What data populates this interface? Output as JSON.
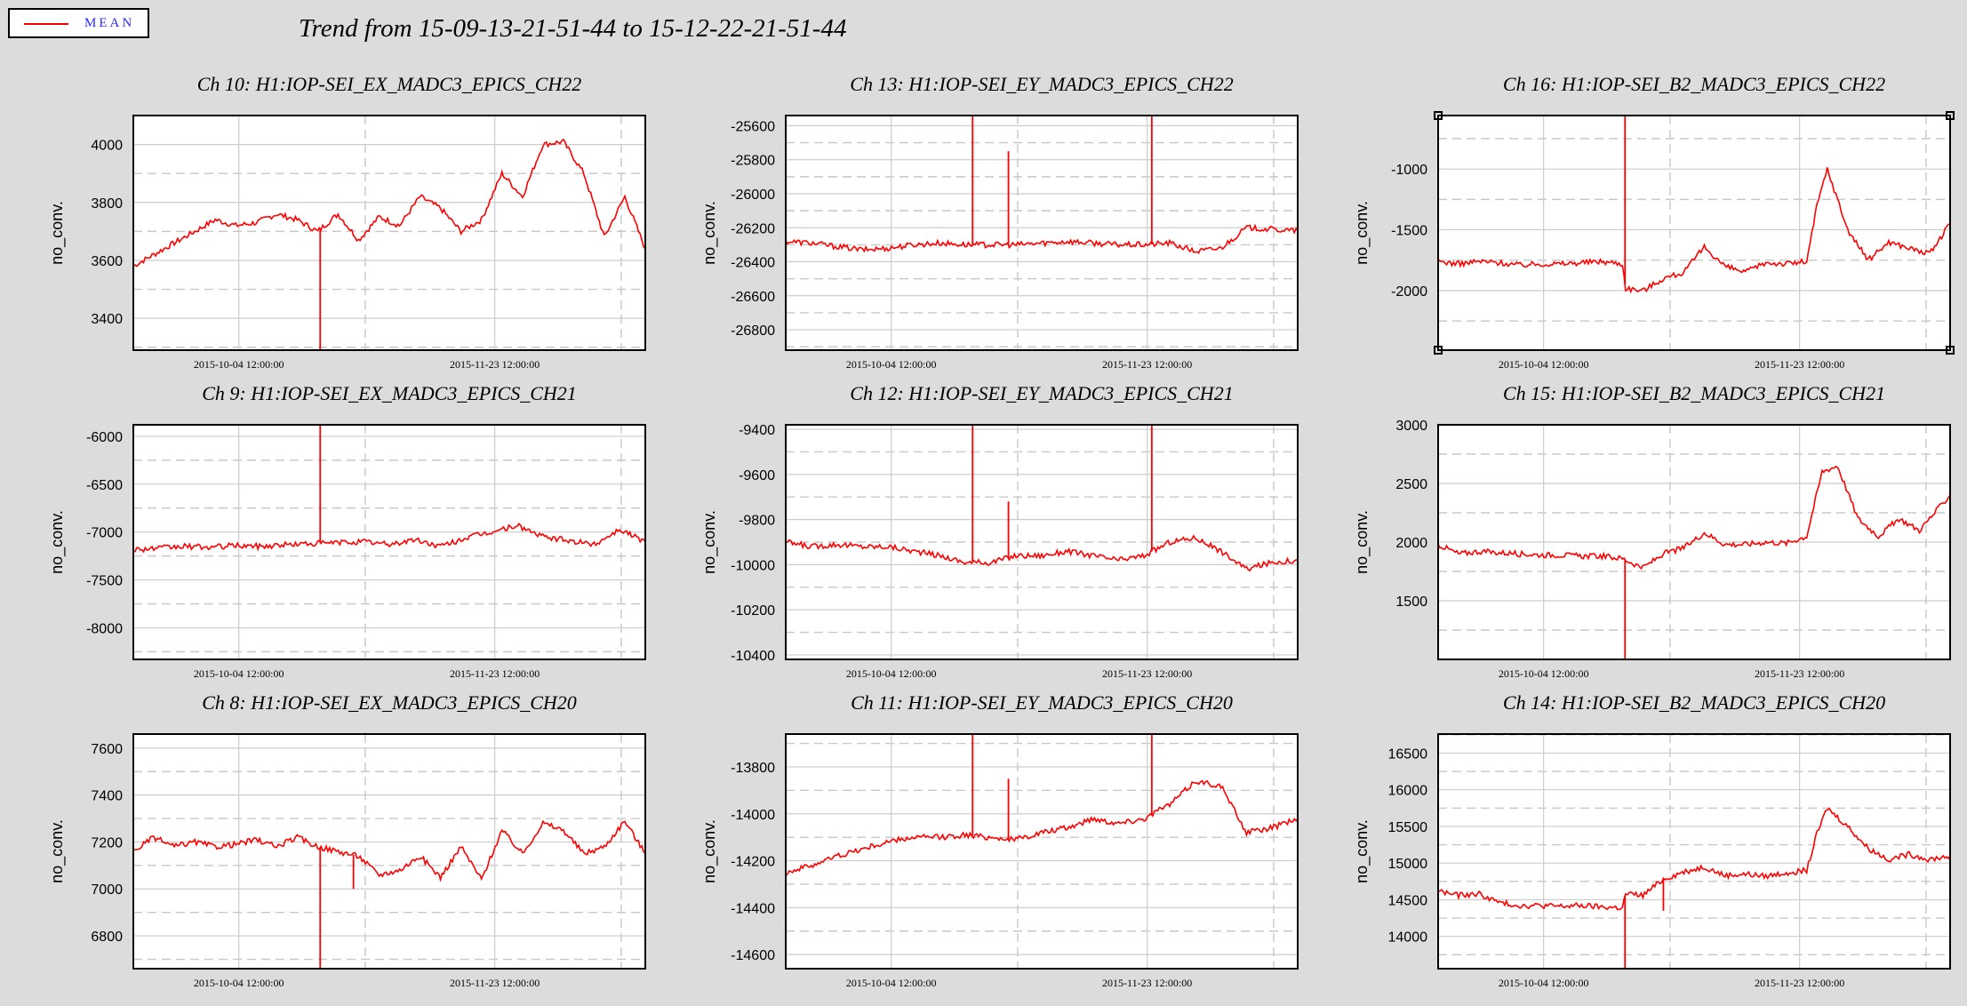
{
  "legend": {
    "label": "MEAN",
    "color": "#ff0000"
  },
  "title": "Trend from 15-09-13-21-51-44 to 15-12-22-21-51-44",
  "chart_data": [
    {
      "type": "line",
      "title": "Ch 10: H1:IOP-SEI_EX_MADC3_EPICS_CH22",
      "ylabel": "no_conv.",
      "ylim": [
        3290,
        4100
      ],
      "yticks": [
        3400,
        3600,
        3800,
        4000
      ],
      "xticks": [
        "2015-10-04 12:00:00",
        "2015-11-23 12:00:00"
      ],
      "series": [
        {
          "color": "#ff0000",
          "x": [
            0,
            4,
            8,
            12,
            16,
            20,
            24,
            28,
            32,
            36,
            40,
            44,
            48,
            52,
            56,
            60,
            64,
            68,
            72,
            76,
            80,
            84,
            88,
            92,
            96,
            100
          ],
          "y": [
            3580,
            3620,
            3660,
            3700,
            3740,
            3720,
            3730,
            3760,
            3740,
            3700,
            3760,
            3670,
            3750,
            3720,
            3820,
            3780,
            3700,
            3740,
            3900,
            3820,
            4000,
            4010,
            3900,
            3680,
            3820,
            3640
          ]
        }
      ],
      "spikes": [
        {
          "x": 36.5,
          "to": 3290
        },
        {
          "x": 100,
          "to": 3290
        }
      ]
    },
    {
      "type": "line",
      "title": "Ch 13: H1:IOP-SEI_EY_MADC3_EPICS_CH22",
      "ylabel": "no_conv.",
      "ylim": [
        -26920,
        -25540
      ],
      "yticks": [
        -25600,
        -25800,
        -26000,
        -26200,
        -26400,
        -26600,
        -26800
      ],
      "xticks": [
        "2015-10-04 12:00:00",
        "2015-11-23 12:00:00"
      ],
      "series": [
        {
          "color": "#ff0000",
          "x": [
            0,
            5,
            10,
            15,
            20,
            25,
            30,
            35,
            40,
            45,
            50,
            55,
            60,
            65,
            70,
            75,
            80,
            85,
            90,
            95,
            100
          ],
          "y": [
            -26280,
            -26290,
            -26310,
            -26330,
            -26320,
            -26300,
            -26290,
            -26300,
            -26300,
            -26300,
            -26290,
            -26280,
            -26290,
            -26300,
            -26300,
            -26290,
            -26340,
            -26320,
            -26200,
            -26210,
            -26220
          ]
        }
      ],
      "spikes": [
        {
          "x": 36.5,
          "to": -25540
        },
        {
          "x": 43.5,
          "to": -25750
        },
        {
          "x": 71.5,
          "to": -25540
        },
        {
          "x": 100,
          "to": -25540
        }
      ]
    },
    {
      "type": "line",
      "title": "Ch 16: H1:IOP-SEI_B2_MADC3_EPICS_CH22",
      "ylabel": "no_conv.",
      "ylim": [
        -2490,
        -560
      ],
      "yticks": [
        -1000,
        -1500,
        -2000
      ],
      "xticks": [
        "2015-10-04 12:00:00",
        "2015-11-23 12:00:00"
      ],
      "series": [
        {
          "color": "#ff0000",
          "x": [
            0,
            4,
            8,
            12,
            16,
            20,
            24,
            28,
            32,
            36,
            36.6,
            40,
            44,
            48,
            52,
            56,
            60,
            64,
            68,
            72,
            74,
            76,
            80,
            84,
            88,
            92,
            96,
            100
          ],
          "y": [
            -1760,
            -1780,
            -1760,
            -1770,
            -1790,
            -1780,
            -1780,
            -1770,
            -1760,
            -1780,
            -1980,
            -2000,
            -1900,
            -1850,
            -1640,
            -1800,
            -1850,
            -1770,
            -1780,
            -1760,
            -1300,
            -1000,
            -1500,
            -1750,
            -1600,
            -1650,
            -1700,
            -1450
          ]
        }
      ],
      "spikes": [
        {
          "x": 36.5,
          "to": -560
        },
        {
          "x": 100,
          "to": -560
        }
      ],
      "selected": true
    },
    {
      "type": "line",
      "title": "Ch 9: H1:IOP-SEI_EX_MADC3_EPICS_CH21",
      "ylabel": "no_conv.",
      "ylim": [
        -8330,
        -5880
      ],
      "yticks": [
        -6000,
        -6500,
        -7000,
        -7500,
        -8000
      ],
      "xticks": [
        "2015-10-04 12:00:00",
        "2015-11-23 12:00:00"
      ],
      "series": [
        {
          "color": "#ff0000",
          "x": [
            0,
            5,
            10,
            15,
            20,
            25,
            30,
            35,
            40,
            45,
            50,
            55,
            60,
            65,
            70,
            75,
            80,
            85,
            90,
            95,
            100
          ],
          "y": [
            -7180,
            -7170,
            -7150,
            -7160,
            -7140,
            -7150,
            -7130,
            -7120,
            -7110,
            -7100,
            -7130,
            -7080,
            -7150,
            -7060,
            -7000,
            -6930,
            -7050,
            -7090,
            -7130,
            -6970,
            -7100
          ]
        }
      ],
      "spikes": [
        {
          "x": 36.5,
          "to": -5880
        },
        {
          "x": 100,
          "to": -5880
        }
      ]
    },
    {
      "type": "line",
      "title": "Ch 12: H1:IOP-SEI_EY_MADC3_EPICS_CH21",
      "ylabel": "no_conv.",
      "ylim": [
        -10420,
        -9380
      ],
      "yticks": [
        -9400,
        -9600,
        -9800,
        -10000,
        -10200,
        -10400
      ],
      "xticks": [
        "2015-10-04 12:00:00",
        "2015-11-23 12:00:00"
      ],
      "series": [
        {
          "color": "#ff0000",
          "x": [
            0,
            5,
            10,
            15,
            20,
            25,
            30,
            35,
            40,
            45,
            50,
            55,
            60,
            65,
            70,
            75,
            80,
            85,
            90,
            95,
            100
          ],
          "y": [
            -9900,
            -9920,
            -9910,
            -9920,
            -9920,
            -9940,
            -9960,
            -9990,
            -9990,
            -9960,
            -9960,
            -9940,
            -9960,
            -9980,
            -9960,
            -9900,
            -9880,
            -9940,
            -10020,
            -9990,
            -9980
          ]
        }
      ],
      "spikes": [
        {
          "x": 36.5,
          "to": -9380
        },
        {
          "x": 43.5,
          "to": -9720
        },
        {
          "x": 71.5,
          "to": -9380
        },
        {
          "x": 100,
          "to": -9380
        }
      ]
    },
    {
      "type": "line",
      "title": "Ch 15: H1:IOP-SEI_B2_MADC3_EPICS_CH21",
      "ylabel": "no_conv.",
      "ylim": [
        1000,
        3000
      ],
      "yticks": [
        1500,
        2000,
        2500,
        3000
      ],
      "xticks": [
        "2015-10-04 12:00:00",
        "2015-11-23 12:00:00"
      ],
      "series": [
        {
          "color": "#ff0000",
          "x": [
            0,
            4,
            8,
            12,
            16,
            20,
            24,
            28,
            32,
            36,
            40,
            44,
            48,
            52,
            56,
            60,
            64,
            68,
            72,
            75,
            78,
            82,
            86,
            90,
            94,
            100
          ],
          "y": [
            1980,
            1900,
            1920,
            1910,
            1900,
            1890,
            1890,
            1880,
            1880,
            1860,
            1780,
            1900,
            1950,
            2080,
            1980,
            1980,
            2000,
            1990,
            2050,
            2600,
            2650,
            2200,
            2050,
            2200,
            2100,
            2400
          ]
        }
      ],
      "spikes": [
        {
          "x": 36.5,
          "to": 1000
        },
        {
          "x": 100,
          "to": 1000
        }
      ]
    },
    {
      "type": "line",
      "title": "Ch 8: H1:IOP-SEI_EX_MADC3_EPICS_CH20",
      "ylabel": "no_conv.",
      "ylim": [
        6660,
        7660
      ],
      "yticks": [
        6800,
        7000,
        7200,
        7400,
        7600
      ],
      "xticks": [
        "2015-10-04 12:00:00",
        "2015-11-23 12:00:00"
      ],
      "series": [
        {
          "color": "#ff0000",
          "x": [
            0,
            4,
            8,
            12,
            16,
            20,
            24,
            28,
            32,
            36,
            40,
            44,
            48,
            52,
            56,
            60,
            64,
            68,
            72,
            76,
            80,
            84,
            88,
            92,
            96,
            100
          ],
          "y": [
            7160,
            7220,
            7180,
            7200,
            7180,
            7190,
            7210,
            7180,
            7220,
            7180,
            7160,
            7140,
            7060,
            7080,
            7140,
            7050,
            7180,
            7040,
            7250,
            7150,
            7280,
            7250,
            7150,
            7180,
            7290,
            7150
          ]
        }
      ],
      "spikes": [
        {
          "x": 36.5,
          "to": 6660
        },
        {
          "x": 43,
          "to": 7000
        },
        {
          "x": 100,
          "to": 6660
        }
      ]
    },
    {
      "type": "line",
      "title": "Ch 11: H1:IOP-SEI_EY_MADC3_EPICS_CH20",
      "ylabel": "no_conv.",
      "ylim": [
        -14660,
        -13660
      ],
      "yticks": [
        -13800,
        -14000,
        -14200,
        -14400,
        -14600
      ],
      "xticks": [
        "2015-10-04 12:00:00",
        "2015-11-23 12:00:00"
      ],
      "series": [
        {
          "color": "#ff0000",
          "x": [
            0,
            5,
            10,
            15,
            20,
            25,
            30,
            35,
            40,
            45,
            50,
            55,
            60,
            65,
            70,
            75,
            80,
            85,
            90,
            95,
            100
          ],
          "y": [
            -14250,
            -14220,
            -14180,
            -14150,
            -14120,
            -14100,
            -14100,
            -14090,
            -14100,
            -14110,
            -14080,
            -14060,
            -14020,
            -14040,
            -14020,
            -13960,
            -13860,
            -13880,
            -14080,
            -14060,
            -14020
          ]
        }
      ],
      "spikes": [
        {
          "x": 36.5,
          "to": -13660
        },
        {
          "x": 43.5,
          "to": -13850
        },
        {
          "x": 71.5,
          "to": -13660
        },
        {
          "x": 100,
          "to": -13660
        }
      ]
    },
    {
      "type": "line",
      "title": "Ch 14: H1:IOP-SEI_B2_MADC3_EPICS_CH20",
      "ylabel": "no_conv.",
      "ylim": [
        13560,
        16760
      ],
      "yticks": [
        14000,
        14500,
        15000,
        15500,
        16000,
        16500
      ],
      "xticks": [
        "2015-10-04 12:00:00",
        "2015-11-23 12:00:00"
      ],
      "series": [
        {
          "color": "#ff0000",
          "x": [
            0,
            4,
            8,
            12,
            16,
            20,
            24,
            28,
            32,
            36,
            36.6,
            40,
            44,
            48,
            52,
            56,
            60,
            64,
            68,
            72,
            74,
            76,
            80,
            84,
            88,
            92,
            96,
            100
          ],
          "y": [
            14620,
            14560,
            14580,
            14460,
            14420,
            14420,
            14410,
            14420,
            14400,
            14390,
            14580,
            14560,
            14780,
            14880,
            14950,
            14830,
            14850,
            14820,
            14870,
            14900,
            15400,
            15750,
            15500,
            15200,
            15050,
            15120,
            15050,
            15100
          ]
        }
      ],
      "spikes": [
        {
          "x": 36.5,
          "to": 13560
        },
        {
          "x": 44,
          "to": 14350
        },
        {
          "x": 100,
          "to": 13560
        }
      ]
    }
  ]
}
